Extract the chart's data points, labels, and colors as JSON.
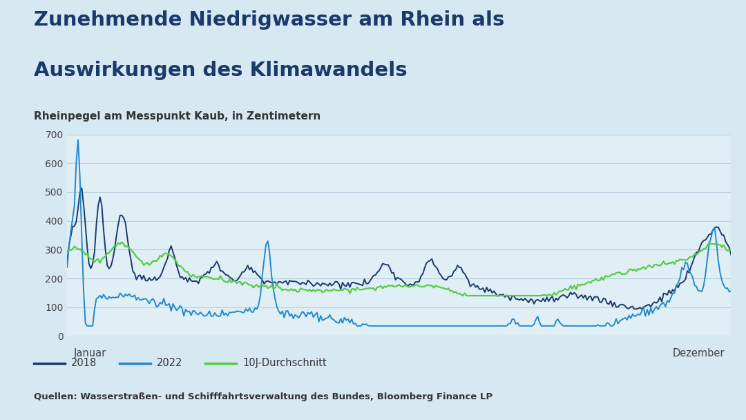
{
  "title_line1": "Zunehmende Niedrigwasser am Rhein als",
  "title_line2": "Auswirkungen des Klimawandels",
  "subtitle": "Rheinpegel am Messpunkt Kaub, in Zentimetern",
  "xlabel_left": "Januar",
  "xlabel_right": "Dezember",
  "ylabel_ticks": [
    0,
    100,
    200,
    300,
    400,
    500,
    600,
    700
  ],
  "source": "Quellen: Wasserstraßen- und Schifffahrtsverwaltung des Bundes, Bloomberg Finance LP",
  "legend_items": [
    "2018",
    "2022",
    "10J-Durchschnitt"
  ],
  "colors": {
    "2018": "#1a3a6b",
    "2022": "#2288cc",
    "avg": "#55cc44",
    "background": "#d6e8f2",
    "plot_bg": "#e0eef5",
    "title": "#1a3a6b",
    "subtitle": "#333333",
    "grid": "#b8cfe0",
    "text": "#444444"
  },
  "figsize": [
    10.8,
    6.08
  ],
  "dpi": 100
}
